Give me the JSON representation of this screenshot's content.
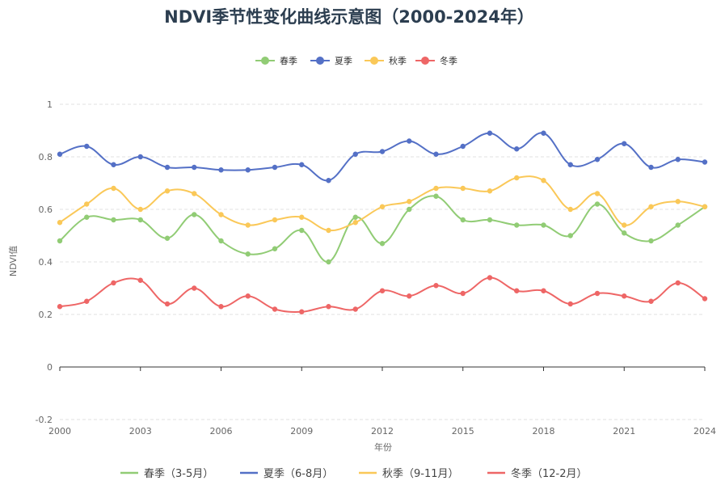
{
  "chart_data": {
    "type": "line",
    "title": "NDVI季节性变化曲线示意图（2000-2024年）",
    "xlabel": "年份",
    "ylabel": "NDVI值",
    "x": [
      2000,
      2001,
      2002,
      2003,
      2004,
      2005,
      2006,
      2007,
      2008,
      2009,
      2010,
      2011,
      2012,
      2013,
      2014,
      2015,
      2016,
      2017,
      2018,
      2019,
      2020,
      2021,
      2022,
      2023,
      2024
    ],
    "x_ticks": [
      "2000",
      "2003",
      "2006",
      "2009",
      "2012",
      "2015",
      "2018",
      "2021",
      "2024"
    ],
    "ylim": [
      -0.2,
      1
    ],
    "y_ticks": [
      "-0.2",
      "0",
      "0.2",
      "0.4",
      "0.6",
      "0.8",
      "1"
    ],
    "grid": true,
    "smooth": true,
    "legend_top": [
      "春季",
      "夏季",
      "秋季",
      "冬季"
    ],
    "legend_bottom": [
      "春季（3-5月）",
      "夏季（6-8月）",
      "秋季（9-11月）",
      "冬季（12-2月）"
    ],
    "colors": [
      "#91cc75",
      "#5470c6",
      "#fac858",
      "#ee6666"
    ],
    "series": [
      {
        "name": "春季",
        "values": [
          0.48,
          0.57,
          0.56,
          0.56,
          0.49,
          0.58,
          0.48,
          0.43,
          0.45,
          0.52,
          0.4,
          0.57,
          0.47,
          0.6,
          0.65,
          0.56,
          0.56,
          0.54,
          0.54,
          0.5,
          0.62,
          0.51,
          0.48,
          0.54,
          0.61
        ]
      },
      {
        "name": "夏季",
        "values": [
          0.81,
          0.84,
          0.77,
          0.8,
          0.76,
          0.76,
          0.75,
          0.75,
          0.76,
          0.77,
          0.71,
          0.81,
          0.82,
          0.86,
          0.81,
          0.84,
          0.89,
          0.83,
          0.89,
          0.77,
          0.79,
          0.85,
          0.76,
          0.79,
          0.78
        ]
      },
      {
        "name": "秋季",
        "values": [
          0.55,
          0.62,
          0.68,
          0.6,
          0.67,
          0.66,
          0.58,
          0.54,
          0.56,
          0.57,
          0.52,
          0.55,
          0.61,
          0.63,
          0.68,
          0.68,
          0.67,
          0.72,
          0.71,
          0.6,
          0.66,
          0.54,
          0.61,
          0.63,
          0.61
        ]
      },
      {
        "name": "冬季",
        "values": [
          0.23,
          0.25,
          0.32,
          0.33,
          0.24,
          0.3,
          0.23,
          0.27,
          0.22,
          0.21,
          0.23,
          0.22,
          0.29,
          0.27,
          0.31,
          0.28,
          0.34,
          0.29,
          0.29,
          0.24,
          0.28,
          0.27,
          0.25,
          0.32,
          0.26
        ]
      }
    ]
  }
}
